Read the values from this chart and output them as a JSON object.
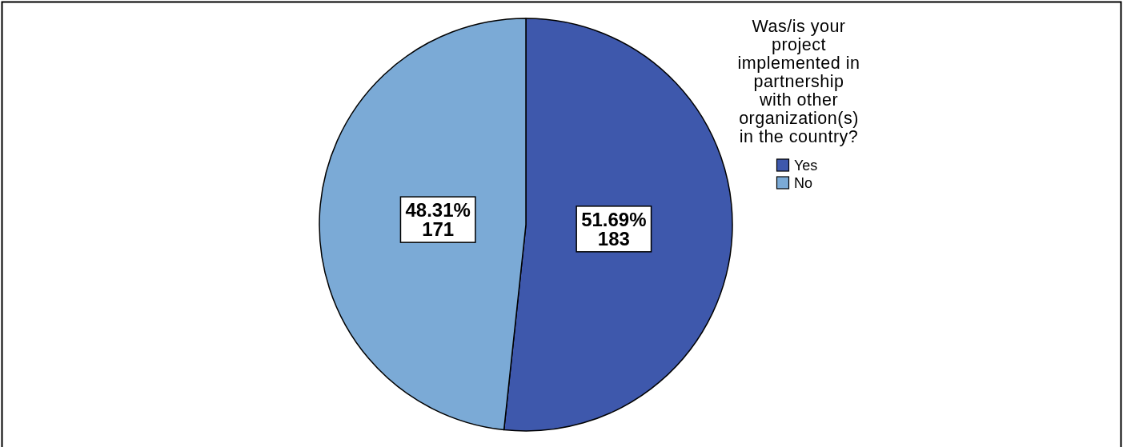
{
  "chart_data": {
    "type": "pie",
    "categories": [
      "Yes",
      "No"
    ],
    "values": [
      183,
      171
    ],
    "colors": [
      "#3e58ac",
      "#7baad6"
    ],
    "value_labels": [
      "51.69%\n183",
      "48.31%\n171"
    ],
    "legend_title": "Was/is your project implemented in partnership with other organization(s) in the country?",
    "legend": "top right"
  }
}
